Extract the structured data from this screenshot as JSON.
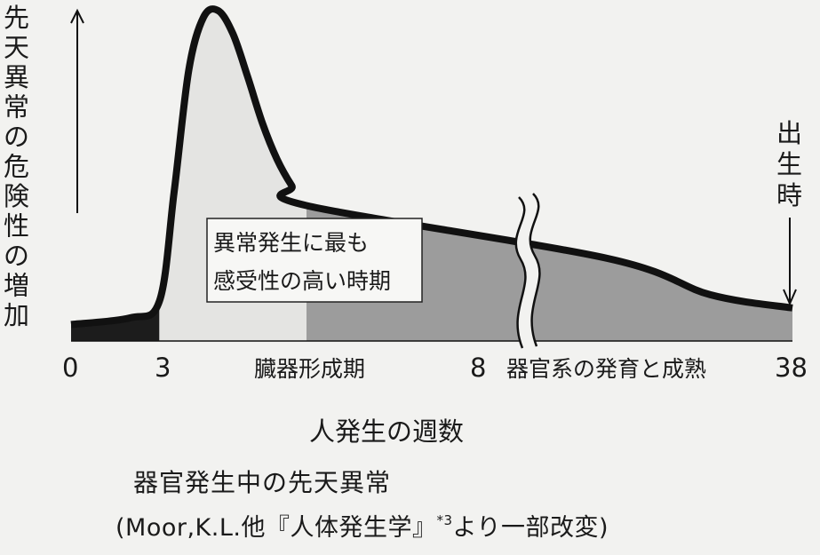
{
  "chart_data": {
    "type": "area",
    "title": "器官発生中の先天異常",
    "source": {
      "prefix": "(Moor,K.L.他『人体発生学』",
      "note": "*3",
      "suffix": "より一部改変)"
    },
    "ylabel": "先天異常の危険性の増加",
    "xlabel": "人発生の週数",
    "x_ticks": [
      0,
      3,
      8,
      38
    ],
    "axis_break_after_week": 8,
    "periods": [
      {
        "label": "",
        "from": 0,
        "to": 3,
        "shade": "#1c1c1c"
      },
      {
        "label": "臓器形成期",
        "from": 3,
        "to": 8,
        "shade": "#e4e4e2"
      },
      {
        "label": "器官系の発育と成熟",
        "from": 8,
        "to": 38,
        "shade": "#9c9c9c"
      }
    ],
    "annotation": {
      "line1": "異常発生に最も",
      "line2": "感受性の高い時期"
    },
    "birth_marker": {
      "label": "出生時",
      "week": 38
    },
    "curve": {
      "x": [
        0,
        2,
        3,
        3.5,
        4,
        4.5,
        5,
        5.5,
        6,
        6.5,
        7,
        7.5,
        8,
        20,
        30,
        38
      ],
      "y": [
        0.05,
        0.07,
        0.12,
        0.45,
        0.82,
        0.98,
        1.0,
        0.93,
        0.8,
        0.66,
        0.55,
        0.47,
        0.41,
        0.25,
        0.14,
        0.1
      ]
    }
  }
}
